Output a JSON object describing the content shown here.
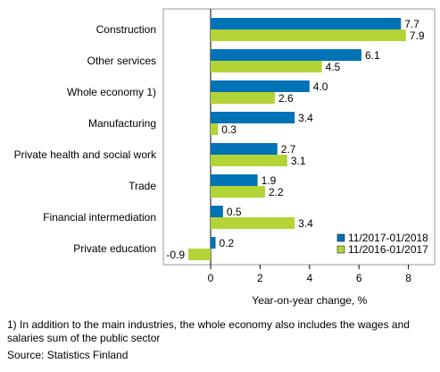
{
  "chart_data": {
    "type": "bar",
    "orientation": "horizontal",
    "categories": [
      "Construction",
      "Other services",
      "Whole economy 1)",
      "Manufacturing",
      "Private health and social work",
      "Trade",
      "Financial intermediation",
      "Private education"
    ],
    "series": [
      {
        "name": "11/2017-01/2018",
        "color": "#0072b6",
        "values": [
          7.7,
          6.1,
          4.0,
          3.4,
          2.7,
          1.9,
          0.5,
          0.2
        ],
        "labels": [
          "7.7",
          "6.1",
          "4.0",
          "3.4",
          "2.7",
          "1.9",
          "0.5",
          "0.2"
        ]
      },
      {
        "name": "11/2016-01/2017",
        "color": "#b4d335",
        "values": [
          7.9,
          4.5,
          2.6,
          0.3,
          3.1,
          2.2,
          3.4,
          -0.9
        ],
        "labels": [
          "7.9",
          "4.5",
          "2.6",
          "0.3",
          "3.1",
          "2.2",
          "3.4",
          "-0.9"
        ]
      }
    ],
    "xlabel": "Year-on-year change, %",
    "xlim": [
      -1.9,
      8.7
    ],
    "xticks": [
      0,
      2,
      4,
      6,
      8
    ],
    "xtick_labels": [
      "0",
      "2",
      "4",
      "6",
      "8"
    ],
    "grid": false,
    "legend_position": "bottom-right"
  },
  "footnote": "1) In addition to the main industries, the whole economy also includes the wages and salaries sum of the public sector",
  "source": "Source: Statistics Finland"
}
